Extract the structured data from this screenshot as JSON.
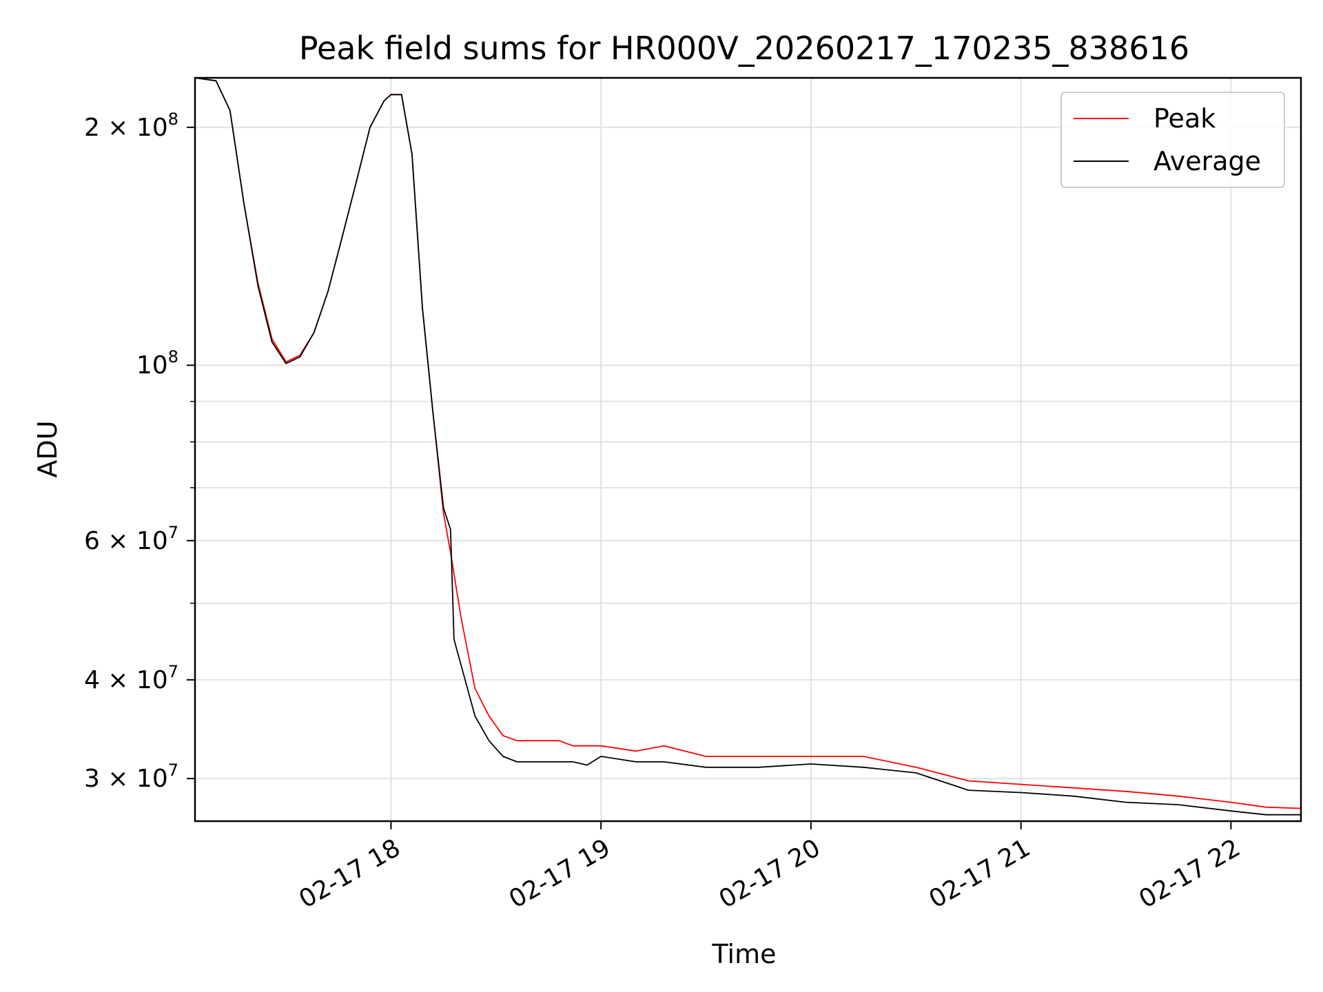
{
  "chart_data": {
    "type": "line",
    "title": "Peak field sums for HR000V_20260217_170235_838616",
    "xlabel": "Time",
    "ylabel": "ADU",
    "y_scale": "log",
    "grid": true,
    "legend_position": "top-right",
    "x_range": [
      "02-17 17:04",
      "02-17 22:20"
    ],
    "ylim": [
      26500000,
      231000000
    ],
    "x_ticks": [
      {
        "value": "02-17 18:00",
        "label": "02-17 18"
      },
      {
        "value": "02-17 19:00",
        "label": "02-17 19"
      },
      {
        "value": "02-17 20:00",
        "label": "02-17 20"
      },
      {
        "value": "02-17 21:00",
        "label": "02-17 21"
      },
      {
        "value": "02-17 22:00",
        "label": "02-17 22"
      }
    ],
    "y_major_ticks": [
      {
        "value": 200000000,
        "mantissa": "2",
        "exponent": "8"
      },
      {
        "value": 100000000,
        "mantissa": "",
        "exponent": "8"
      },
      {
        "value": 60000000,
        "mantissa": "6",
        "exponent": "7"
      },
      {
        "value": 40000000,
        "mantissa": "4",
        "exponent": "7"
      },
      {
        "value": 30000000,
        "mantissa": "3",
        "exponent": "7"
      }
    ],
    "y_minor_ticks": [
      50000000,
      70000000,
      80000000,
      90000000
    ],
    "series": [
      {
        "name": "Peak",
        "color": "#ff0000",
        "x": [
          "02-17 17:04",
          "02-17 17:10",
          "02-17 17:14",
          "02-17 17:18",
          "02-17 17:22",
          "02-17 17:26",
          "02-17 17:30",
          "02-17 17:34",
          "02-17 17:38",
          "02-17 17:42",
          "02-17 17:46",
          "02-17 17:50",
          "02-17 17:54",
          "02-17 17:58",
          "02-17 18:00",
          "02-17 18:03",
          "02-17 18:06",
          "02-17 18:09",
          "02-17 18:12",
          "02-17 18:15",
          "02-17 18:17",
          "02-17 18:20",
          "02-17 18:24",
          "02-17 18:28",
          "02-17 18:32",
          "02-17 18:36",
          "02-17 18:40",
          "02-17 18:44",
          "02-17 18:48",
          "02-17 18:52",
          "02-17 18:56",
          "02-17 19:00",
          "02-17 19:10",
          "02-17 19:18",
          "02-17 19:30",
          "02-17 19:45",
          "02-17 20:00",
          "02-17 20:15",
          "02-17 20:30",
          "02-17 20:45",
          "02-17 21:00",
          "02-17 21:15",
          "02-17 21:30",
          "02-17 21:45",
          "02-17 22:00",
          "02-17 22:10",
          "02-17 22:20"
        ],
        "values": [
          231000000,
          229000000,
          210000000,
          160000000,
          127000000,
          108000000,
          101000000,
          103000000,
          110000000,
          124000000,
          145000000,
          170000000,
          200000000,
          216000000,
          220000000,
          220000000,
          185000000,
          118000000,
          87000000,
          65000000,
          58000000,
          48000000,
          39000000,
          36000000,
          34000000,
          33500000,
          33500000,
          33500000,
          33500000,
          33000000,
          33000000,
          33000000,
          32500000,
          33000000,
          32000000,
          32000000,
          32000000,
          32000000,
          31000000,
          29800000,
          29500000,
          29200000,
          28900000,
          28500000,
          28000000,
          27600000,
          27500000
        ]
      },
      {
        "name": "Average",
        "color": "#000000",
        "x": [
          "02-17 17:04",
          "02-17 17:10",
          "02-17 17:14",
          "02-17 17:18",
          "02-17 17:22",
          "02-17 17:26",
          "02-17 17:30",
          "02-17 17:34",
          "02-17 17:38",
          "02-17 17:42",
          "02-17 17:46",
          "02-17 17:50",
          "02-17 17:54",
          "02-17 17:58",
          "02-17 18:00",
          "02-17 18:03",
          "02-17 18:06",
          "02-17 18:09",
          "02-17 18:12",
          "02-17 18:15",
          "02-17 18:17",
          "02-17 18:18",
          "02-17 18:24",
          "02-17 18:28",
          "02-17 18:32",
          "02-17 18:36",
          "02-17 18:40",
          "02-17 18:44",
          "02-17 18:48",
          "02-17 18:52",
          "02-17 18:56",
          "02-17 19:00",
          "02-17 19:10",
          "02-17 19:18",
          "02-17 19:30",
          "02-17 19:45",
          "02-17 20:00",
          "02-17 20:15",
          "02-17 20:30",
          "02-17 20:45",
          "02-17 21:00",
          "02-17 21:15",
          "02-17 21:30",
          "02-17 21:45",
          "02-17 22:00",
          "02-17 22:10",
          "02-17 22:20"
        ],
        "values": [
          231000000,
          229000000,
          210000000,
          160000000,
          126000000,
          107000000,
          100500000,
          102500000,
          110000000,
          124000000,
          145000000,
          170000000,
          200000000,
          216000000,
          220000000,
          220000000,
          185000000,
          118000000,
          87000000,
          66000000,
          62000000,
          45000000,
          36000000,
          33500000,
          32000000,
          31500000,
          31500000,
          31500000,
          31500000,
          31500000,
          31200000,
          32000000,
          31500000,
          31500000,
          31000000,
          31000000,
          31300000,
          31000000,
          30500000,
          29000000,
          28800000,
          28500000,
          28000000,
          27800000,
          27300000,
          27000000,
          27000000
        ]
      }
    ]
  }
}
